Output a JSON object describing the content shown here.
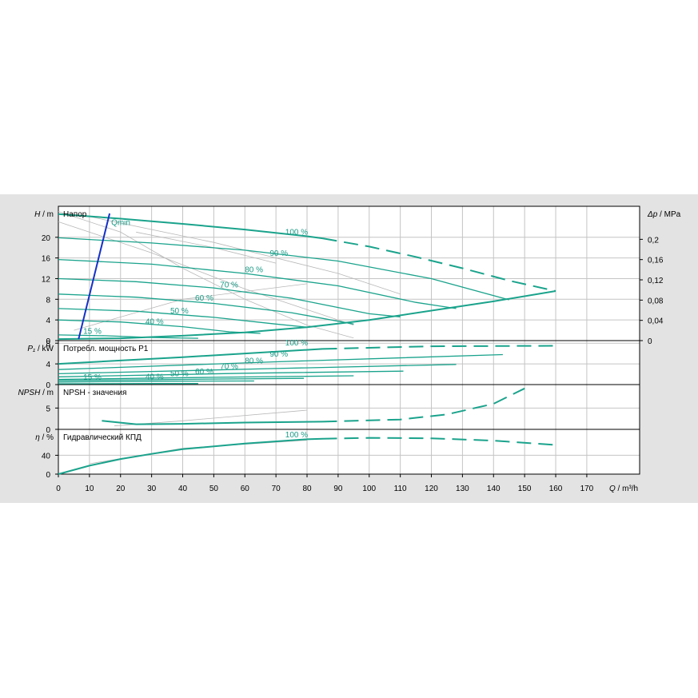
{
  "colors": {
    "curve": "#1aa38c",
    "qmin": "#1530c8",
    "grid": "#c4c4c4",
    "helper": "#b8b8b8",
    "panel": "#e3e3e3"
  },
  "chart_data": {
    "type": "line",
    "x_axis": {
      "sym": "Q",
      "unit": " / m³/h",
      "range": [
        0,
        187
      ],
      "ticks": [
        0,
        10,
        20,
        30,
        40,
        50,
        60,
        70,
        80,
        90,
        100,
        110,
        120,
        130,
        140,
        150,
        160,
        170
      ]
    },
    "head": {
      "title": "Напор",
      "y_sym": "H",
      "y_unit": " / m",
      "y_range": [
        0,
        26
      ],
      "y_ticks": [
        0,
        4,
        8,
        12,
        16,
        20
      ],
      "right_sym": "Δp",
      "right_unit": " / MPa",
      "right_ticks": [
        "0",
        "0,04",
        "0,08",
        "0,12",
        "0,16",
        "0,2"
      ],
      "qmin_label": "Qmin",
      "qmin_line": [
        [
          6.5,
          0.3
        ],
        [
          16.5,
          24.6
        ]
      ],
      "system_curve": [
        [
          0,
          0.3
        ],
        [
          20,
          0.45
        ],
        [
          40,
          0.95
        ],
        [
          60,
          1.6
        ],
        [
          80,
          2.6
        ],
        [
          100,
          4.0
        ],
        [
          120,
          5.8
        ],
        [
          140,
          7.6
        ],
        [
          160,
          9.6
        ]
      ],
      "guide_curves": [
        [
          [
            0,
            25
          ],
          [
            20,
            21
          ],
          [
            40,
            14
          ],
          [
            60,
            8
          ],
          [
            80,
            3
          ],
          [
            95,
            0.5
          ]
        ],
        [
          [
            0,
            23
          ],
          [
            30,
            17
          ],
          [
            60,
            10
          ],
          [
            80,
            6
          ],
          [
            95,
            3
          ]
        ],
        [
          [
            10,
            24
          ],
          [
            50,
            19
          ],
          [
            90,
            13
          ],
          [
            110,
            9
          ]
        ],
        [
          [
            25,
            21
          ],
          [
            50,
            18
          ],
          [
            70,
            15
          ]
        ],
        [
          [
            5,
            2
          ],
          [
            40,
            8
          ],
          [
            80,
            11
          ]
        ]
      ],
      "speeds": [
        {
          "label": "100 %",
          "label_at": [
            73,
            20.5
          ],
          "solid": [
            [
              0,
              24.5
            ],
            [
              20,
              23.6
            ],
            [
              40,
              22.6
            ],
            [
              60,
              21.5
            ],
            [
              80,
              20.2
            ],
            [
              85,
              19.8
            ]
          ],
          "dashed": [
            [
              85,
              19.8
            ],
            [
              100,
              18.2
            ],
            [
              115,
              16.2
            ],
            [
              130,
              14
            ],
            [
              145,
              11.6
            ],
            [
              160,
              9.6
            ]
          ]
        },
        {
          "label": "90 %",
          "label_at": [
            68,
            16.4
          ],
          "solid": [
            [
              0,
              19.9
            ],
            [
              30,
              18.9
            ],
            [
              60,
              17.5
            ],
            [
              90,
              15.4
            ],
            [
              120,
              12
            ],
            [
              145,
              7.9
            ]
          ]
        },
        {
          "label": "80 %",
          "label_at": [
            60,
            13.2
          ],
          "solid": [
            [
              0,
              15.7
            ],
            [
              30,
              14.8
            ],
            [
              60,
              13
            ],
            [
              90,
              10.6
            ],
            [
              115,
              7.4
            ],
            [
              128,
              6.2
            ]
          ]
        },
        {
          "label": "70 %",
          "label_at": [
            52,
            10.3
          ],
          "solid": [
            [
              0,
              12
            ],
            [
              25,
              11.4
            ],
            [
              50,
              10.2
            ],
            [
              75,
              8.2
            ],
            [
              100,
              5.2
            ],
            [
              110,
              4.6
            ]
          ]
        },
        {
          "label": "60 %",
          "label_at": [
            44,
            7.7
          ],
          "solid": [
            [
              0,
              9
            ],
            [
              25,
              8.4
            ],
            [
              50,
              7.2
            ],
            [
              75,
              5.4
            ],
            [
              95,
              3.2
            ]
          ]
        },
        {
          "label": "50 %",
          "label_at": [
            36,
            5.3
          ],
          "solid": [
            [
              0,
              6.2
            ],
            [
              25,
              5.7
            ],
            [
              50,
              4.5
            ],
            [
              70,
              3.2
            ],
            [
              80,
              2.6
            ]
          ]
        },
        {
          "label": "40 %",
          "label_at": [
            28,
            3.2
          ],
          "solid": [
            [
              0,
              4
            ],
            [
              20,
              3.6
            ],
            [
              40,
              2.7
            ],
            [
              55,
              1.7
            ],
            [
              65,
              1.4
            ]
          ]
        },
        {
          "label": "15 %",
          "label_at": [
            8,
            1.3
          ],
          "solid": [
            [
              0,
              1.1
            ],
            [
              15,
              0.95
            ],
            [
              30,
              0.6
            ],
            [
              45,
              0.45
            ]
          ]
        }
      ]
    },
    "power": {
      "title": "Потребл. мощность P1",
      "y_sym": "P₁",
      "y_unit": " / kW",
      "y_range": [
        0,
        8.5
      ],
      "y_ticks": [
        0,
        4,
        8
      ],
      "speeds": [
        {
          "label": "100 %",
          "label_at": [
            73,
            7.6
          ],
          "solid": [
            [
              0,
              4.0
            ],
            [
              40,
              5.3
            ],
            [
              85,
              6.9
            ]
          ],
          "dashed": [
            [
              85,
              6.9
            ],
            [
              120,
              7.4
            ],
            [
              160,
              7.5
            ]
          ]
        },
        {
          "label": "90 %",
          "label_at": [
            68,
            5.4
          ],
          "solid": [
            [
              0,
              2.9
            ],
            [
              70,
              4.4
            ],
            [
              143,
              5.8
            ]
          ]
        },
        {
          "label": "80 %",
          "label_at": [
            60,
            4.1
          ],
          "solid": [
            [
              0,
              2.1
            ],
            [
              70,
              3.1
            ],
            [
              128,
              3.9
            ]
          ]
        },
        {
          "label": "70 %",
          "label_at": [
            52,
            3.0
          ],
          "solid": [
            [
              0,
              1.5
            ],
            [
              60,
              2.2
            ],
            [
              111,
              2.6
            ]
          ]
        },
        {
          "label": "60 %",
          "label_at": [
            44,
            2.0
          ],
          "solid": [
            [
              0,
              1.0
            ],
            [
              50,
              1.4
            ],
            [
              95,
              1.7
            ]
          ]
        },
        {
          "label": "50 %",
          "label_at": [
            36,
            1.6
          ],
          "solid": [
            [
              0,
              0.8
            ],
            [
              40,
              1.0
            ],
            [
              79,
              1.2
            ]
          ]
        },
        {
          "label": "40 %",
          "label_at": [
            28,
            1.0
          ],
          "solid": [
            [
              0,
              0.5
            ],
            [
              30,
              0.65
            ],
            [
              63,
              0.7
            ]
          ]
        },
        {
          "label": "15 %",
          "label_at": [
            8,
            0.9
          ],
          "solid": [
            [
              0,
              0.15
            ],
            [
              30,
              0.2
            ],
            [
              45,
              0.2
            ]
          ]
        }
      ]
    },
    "npsh": {
      "title": "NPSH - значения",
      "y_sym": "NPSH",
      "y_unit": " / m",
      "y_range": [
        0,
        10.5
      ],
      "y_ticks": [
        0,
        5
      ],
      "solid": [
        [
          14,
          2
        ],
        [
          25,
          1.2
        ],
        [
          40,
          1.3
        ],
        [
          60,
          1.6
        ],
        [
          85,
          1.8
        ]
      ],
      "dashed": [
        [
          85,
          1.8
        ],
        [
          110,
          2.3
        ],
        [
          125,
          3.5
        ],
        [
          140,
          6
        ],
        [
          150,
          9.6
        ]
      ],
      "guide": [
        [
          18,
          0.8
        ],
        [
          40,
          2
        ],
        [
          80,
          4.5
        ]
      ]
    },
    "efficiency": {
      "title": "Гидравлический КПД",
      "y_sym": "η",
      "y_unit": " / %",
      "y_range": [
        0,
        95
      ],
      "y_ticks": [
        0,
        40
      ],
      "label": "100 %",
      "label_at": [
        73,
        78
      ],
      "solid": [
        [
          0,
          0
        ],
        [
          10,
          18
        ],
        [
          20,
          32
        ],
        [
          30,
          43
        ],
        [
          40,
          53
        ],
        [
          60,
          65
        ],
        [
          80,
          74
        ],
        [
          85,
          75
        ]
      ],
      "dashed": [
        [
          85,
          75
        ],
        [
          100,
          77
        ],
        [
          120,
          76
        ],
        [
          140,
          71
        ],
        [
          160,
          62
        ]
      ],
      "guide": [
        [
          10,
          22
        ],
        [
          40,
          55
        ],
        [
          80,
          72
        ]
      ]
    }
  }
}
